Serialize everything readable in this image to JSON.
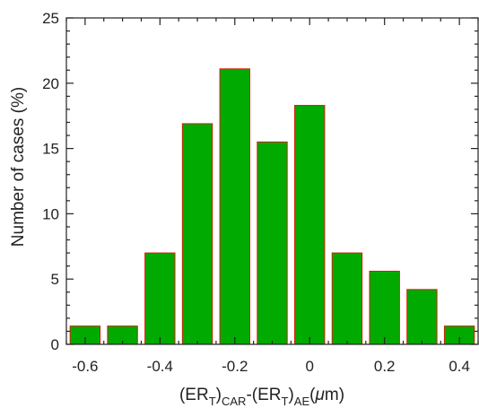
{
  "chart_data": {
    "type": "bar",
    "x": [
      -0.6,
      -0.5,
      -0.4,
      -0.3,
      -0.2,
      -0.1,
      0.0,
      0.1,
      0.2,
      0.3,
      0.4
    ],
    "values": [
      1.4,
      1.4,
      7.0,
      16.9,
      21.1,
      15.5,
      18.3,
      7.0,
      5.6,
      4.2,
      1.4
    ],
    "xlim": [
      -0.65,
      0.45
    ],
    "ylim": [
      0,
      25
    ],
    "xticks": [
      -0.6,
      -0.4,
      -0.2,
      0,
      0.2,
      0.4
    ],
    "xtick_labels": [
      "-0.6",
      "-0.4",
      "-0.2",
      "0",
      "0.2",
      "0.4"
    ],
    "yticks": [
      0,
      5,
      10,
      15,
      20,
      25
    ],
    "ytick_labels": [
      "0",
      "5",
      "10",
      "15",
      "20",
      "25"
    ],
    "ylabel": "Number of cases (%)",
    "xlabel": {
      "p1": "(ER",
      "s1": "T",
      "p2": ")",
      "s2": "CAR",
      "p3": "-(ER",
      "s3": "T",
      "p4": ")",
      "s4": "AE",
      "p5": "(",
      "mu": "μ",
      "p6": "m)"
    },
    "bar_fill": "#00aa00",
    "bar_stroke": "#cc2200",
    "grid": false
  }
}
